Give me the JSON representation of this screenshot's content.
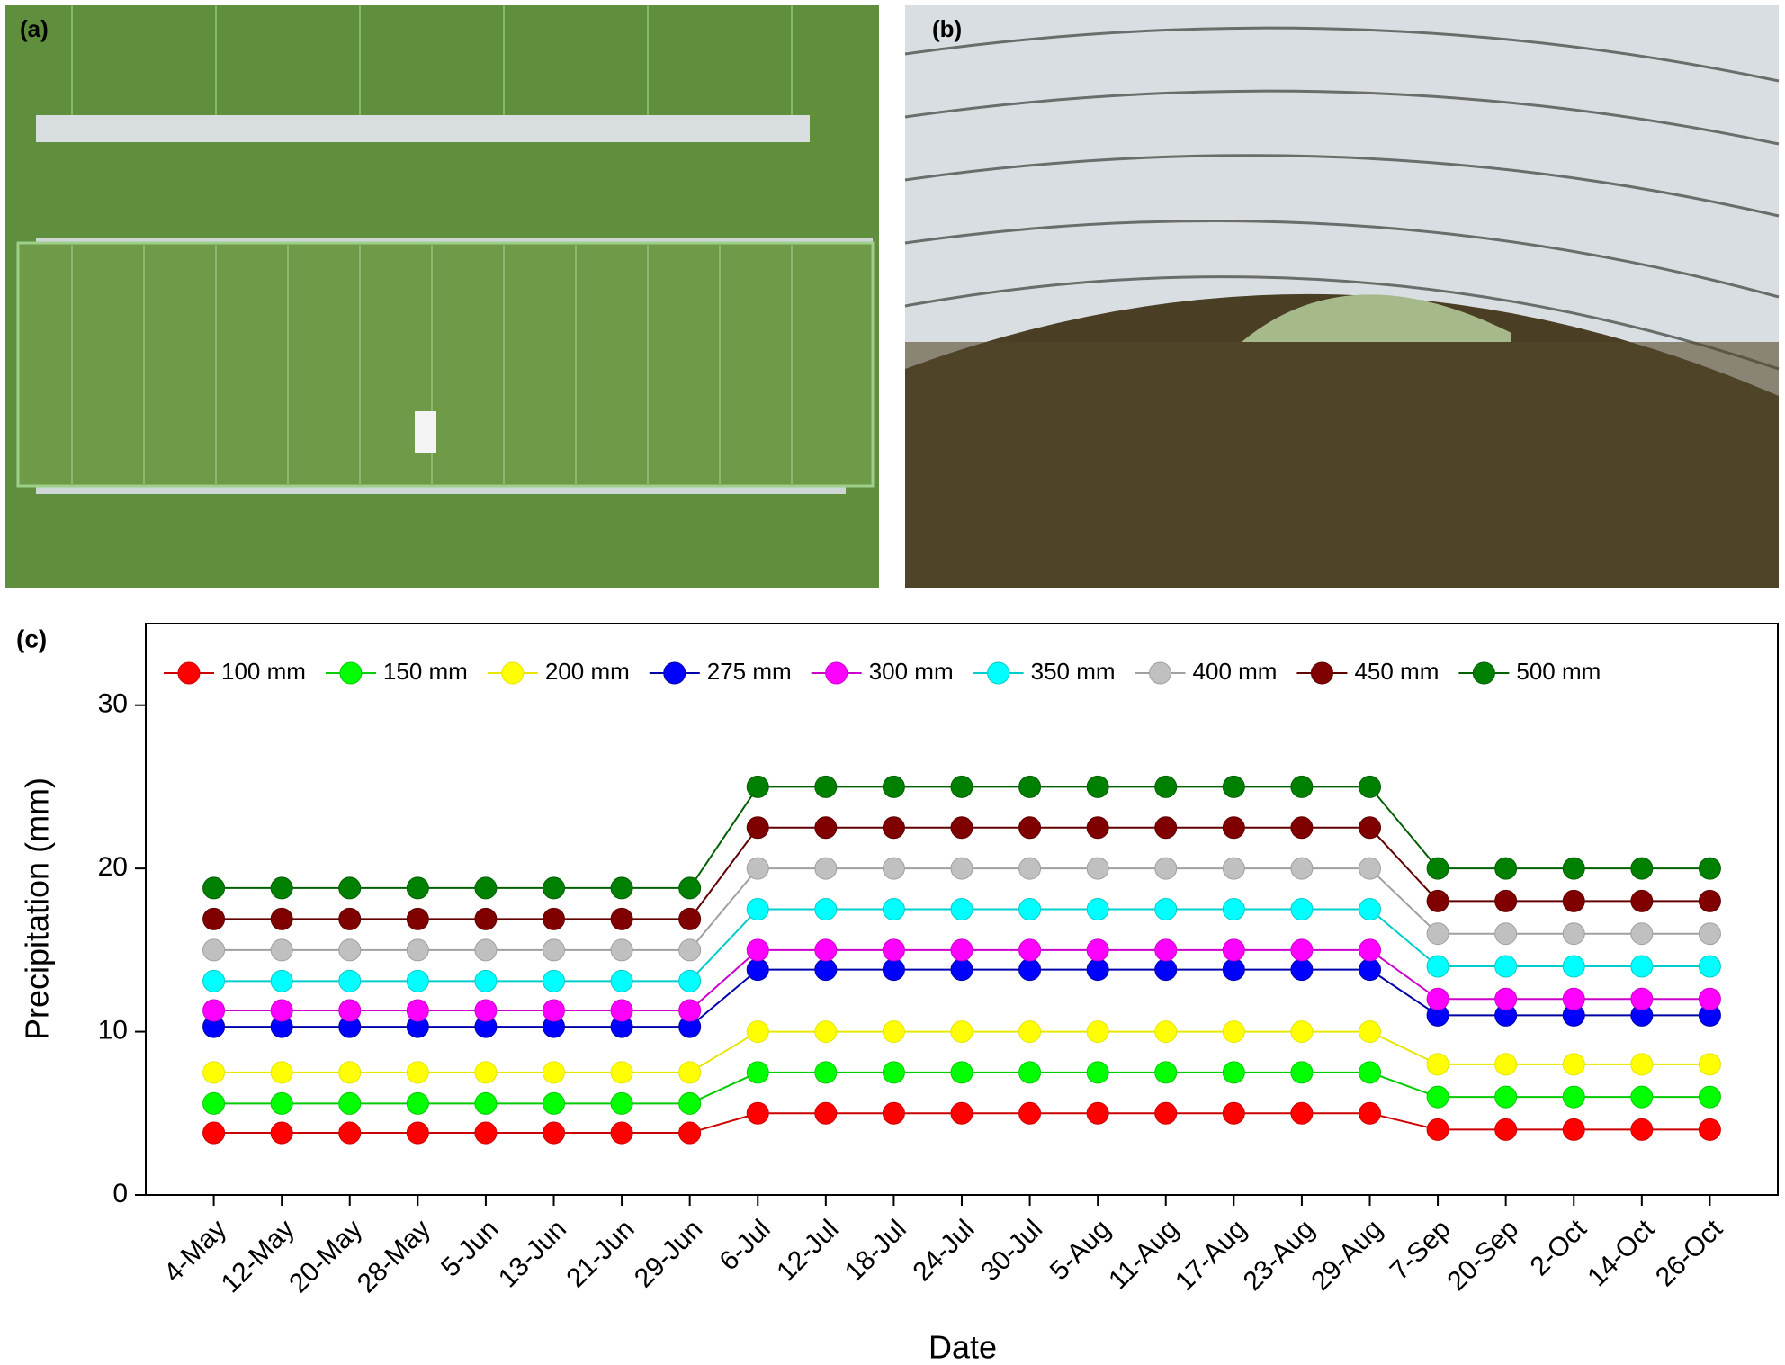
{
  "panel_labels": [
    "(a)",
    "(b)",
    "(c)"
  ],
  "chart_data": {
    "type": "line",
    "x_label": "Date",
    "y_label": "Precipitation (mm)",
    "categories": [
      "4-May",
      "12-May",
      "20-May",
      "28-May",
      "5-Jun",
      "13-Jun",
      "21-Jun",
      "29-Jun",
      "6-Jul",
      "12-Jul",
      "18-Jul",
      "24-Jul",
      "30-Jul",
      "5-Aug",
      "11-Aug",
      "17-Aug",
      "23-Aug",
      "29-Aug",
      "7-Sep",
      "20-Sep",
      "2-Oct",
      "14-Oct",
      "26-Oct"
    ],
    "ylim": [
      0,
      35
    ],
    "yticks": [
      0,
      10,
      20,
      30
    ],
    "legend": "top",
    "series": [
      {
        "name": "100 mm",
        "color": "#ff0000",
        "line_color": "#cc0000",
        "values": [
          3.8,
          3.8,
          3.8,
          3.8,
          3.8,
          3.8,
          3.8,
          3.8,
          5,
          5,
          5,
          5,
          5,
          5,
          5,
          5,
          5,
          5,
          4,
          4,
          4,
          4,
          4
        ]
      },
      {
        "name": "150 mm",
        "color": "#00ff00",
        "line_color": "#00cc00",
        "values": [
          5.6,
          5.6,
          5.6,
          5.6,
          5.6,
          5.6,
          5.6,
          5.6,
          7.5,
          7.5,
          7.5,
          7.5,
          7.5,
          7.5,
          7.5,
          7.5,
          7.5,
          7.5,
          6,
          6,
          6,
          6,
          6
        ]
      },
      {
        "name": "200 mm",
        "color": "#ffff00",
        "line_color": "#e6e600",
        "values": [
          7.5,
          7.5,
          7.5,
          7.5,
          7.5,
          7.5,
          7.5,
          7.5,
          10,
          10,
          10,
          10,
          10,
          10,
          10,
          10,
          10,
          10,
          8,
          8,
          8,
          8,
          8
        ]
      },
      {
        "name": "275 mm",
        "color": "#0000ff",
        "line_color": "#0000aa",
        "values": [
          10.3,
          10.3,
          10.3,
          10.3,
          10.3,
          10.3,
          10.3,
          10.3,
          13.8,
          13.8,
          13.8,
          13.8,
          13.8,
          13.8,
          13.8,
          13.8,
          13.8,
          13.8,
          11,
          11,
          11,
          11,
          11
        ]
      },
      {
        "name": "300 mm",
        "color": "#ff00ff",
        "line_color": "#cc00cc",
        "values": [
          11.3,
          11.3,
          11.3,
          11.3,
          11.3,
          11.3,
          11.3,
          11.3,
          15,
          15,
          15,
          15,
          15,
          15,
          15,
          15,
          15,
          15,
          12,
          12,
          12,
          12,
          12
        ]
      },
      {
        "name": "350 mm",
        "color": "#00ffff",
        "line_color": "#00cccc",
        "values": [
          13.1,
          13.1,
          13.1,
          13.1,
          13.1,
          13.1,
          13.1,
          13.1,
          17.5,
          17.5,
          17.5,
          17.5,
          17.5,
          17.5,
          17.5,
          17.5,
          17.5,
          17.5,
          14,
          14,
          14,
          14,
          14
        ]
      },
      {
        "name": "400 mm",
        "color": "#c0c0c0",
        "line_color": "#a0a0a0",
        "values": [
          15,
          15,
          15,
          15,
          15,
          15,
          15,
          15,
          20,
          20,
          20,
          20,
          20,
          20,
          20,
          20,
          20,
          20,
          16,
          16,
          16,
          16,
          16
        ]
      },
      {
        "name": "450 mm",
        "color": "#800000",
        "line_color": "#600000",
        "values": [
          16.9,
          16.9,
          16.9,
          16.9,
          16.9,
          16.9,
          16.9,
          16.9,
          22.5,
          22.5,
          22.5,
          22.5,
          22.5,
          22.5,
          22.5,
          22.5,
          22.5,
          22.5,
          18,
          18,
          18,
          18,
          18
        ]
      },
      {
        "name": "500 mm",
        "color": "#008000",
        "line_color": "#006000",
        "values": [
          18.8,
          18.8,
          18.8,
          18.8,
          18.8,
          18.8,
          18.8,
          18.8,
          25,
          25,
          25,
          25,
          25,
          25,
          25,
          25,
          25,
          25,
          20,
          20,
          20,
          20,
          20
        ]
      }
    ]
  }
}
